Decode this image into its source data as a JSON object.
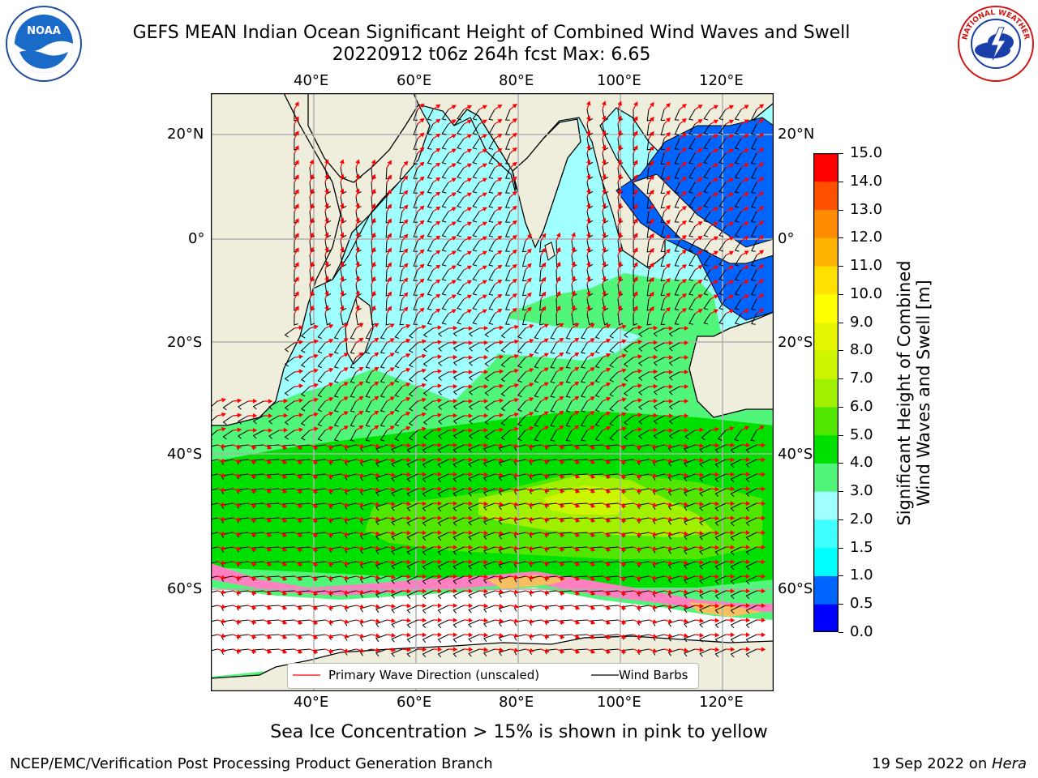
{
  "title": "GEFS MEAN Indian Ocean Significant Height of Combined Wind Waves and Swell",
  "subtitle": "20220912 t06z 264h fcst   Max: 6.65",
  "logos": {
    "left": "noaa-logo",
    "left_text": "NOAA",
    "right": "nws-logo",
    "right_text": "NATIONAL WEATHER SERVICE"
  },
  "map": {
    "lon_ticks": [
      "40°E",
      "60°E",
      "80°E",
      "100°E",
      "120°E"
    ],
    "lat_ticks": [
      "20°N",
      "0°",
      "20°S",
      "40°S",
      "60°S"
    ],
    "land_color": "#efeddc",
    "grid_color": "#b0b0b0"
  },
  "legend": {
    "wave_label": "Primary Wave Direction (unscaled)",
    "wind_label": "Wind Barbs",
    "wave_color": "#ff0000",
    "wind_color": "#000000"
  },
  "colorbar": {
    "title_line1": "Significant Height of Combined",
    "title_line2": "Wind Waves and Swell [m]",
    "ticks": [
      "0.0",
      "0.5",
      "1.0",
      "1.5",
      "2.0",
      "3.0",
      "4.0",
      "5.0",
      "6.0",
      "7.0",
      "8.0",
      "9.0",
      "10.0",
      "11.0",
      "12.0",
      "13.0",
      "14.0",
      "15.0"
    ],
    "colors": [
      "#0000ff",
      "#0064ff",
      "#00ffff",
      "#40ffff",
      "#a0ffff",
      "#50f57a",
      "#00e000",
      "#50e600",
      "#a0f000",
      "#ccf500",
      "#e6f500",
      "#ffff00",
      "#ffe000",
      "#ffb400",
      "#ff8c00",
      "#ff5000",
      "#ff0000"
    ]
  },
  "footnote": "Sea Ice Concentration > 15% is shown in pink to yellow",
  "footer": {
    "left": "NCEP/EMC/Verification Post Processing Product Generation Branch",
    "right_date": "19 Sep 2022 on ",
    "right_host": "Hera"
  }
}
